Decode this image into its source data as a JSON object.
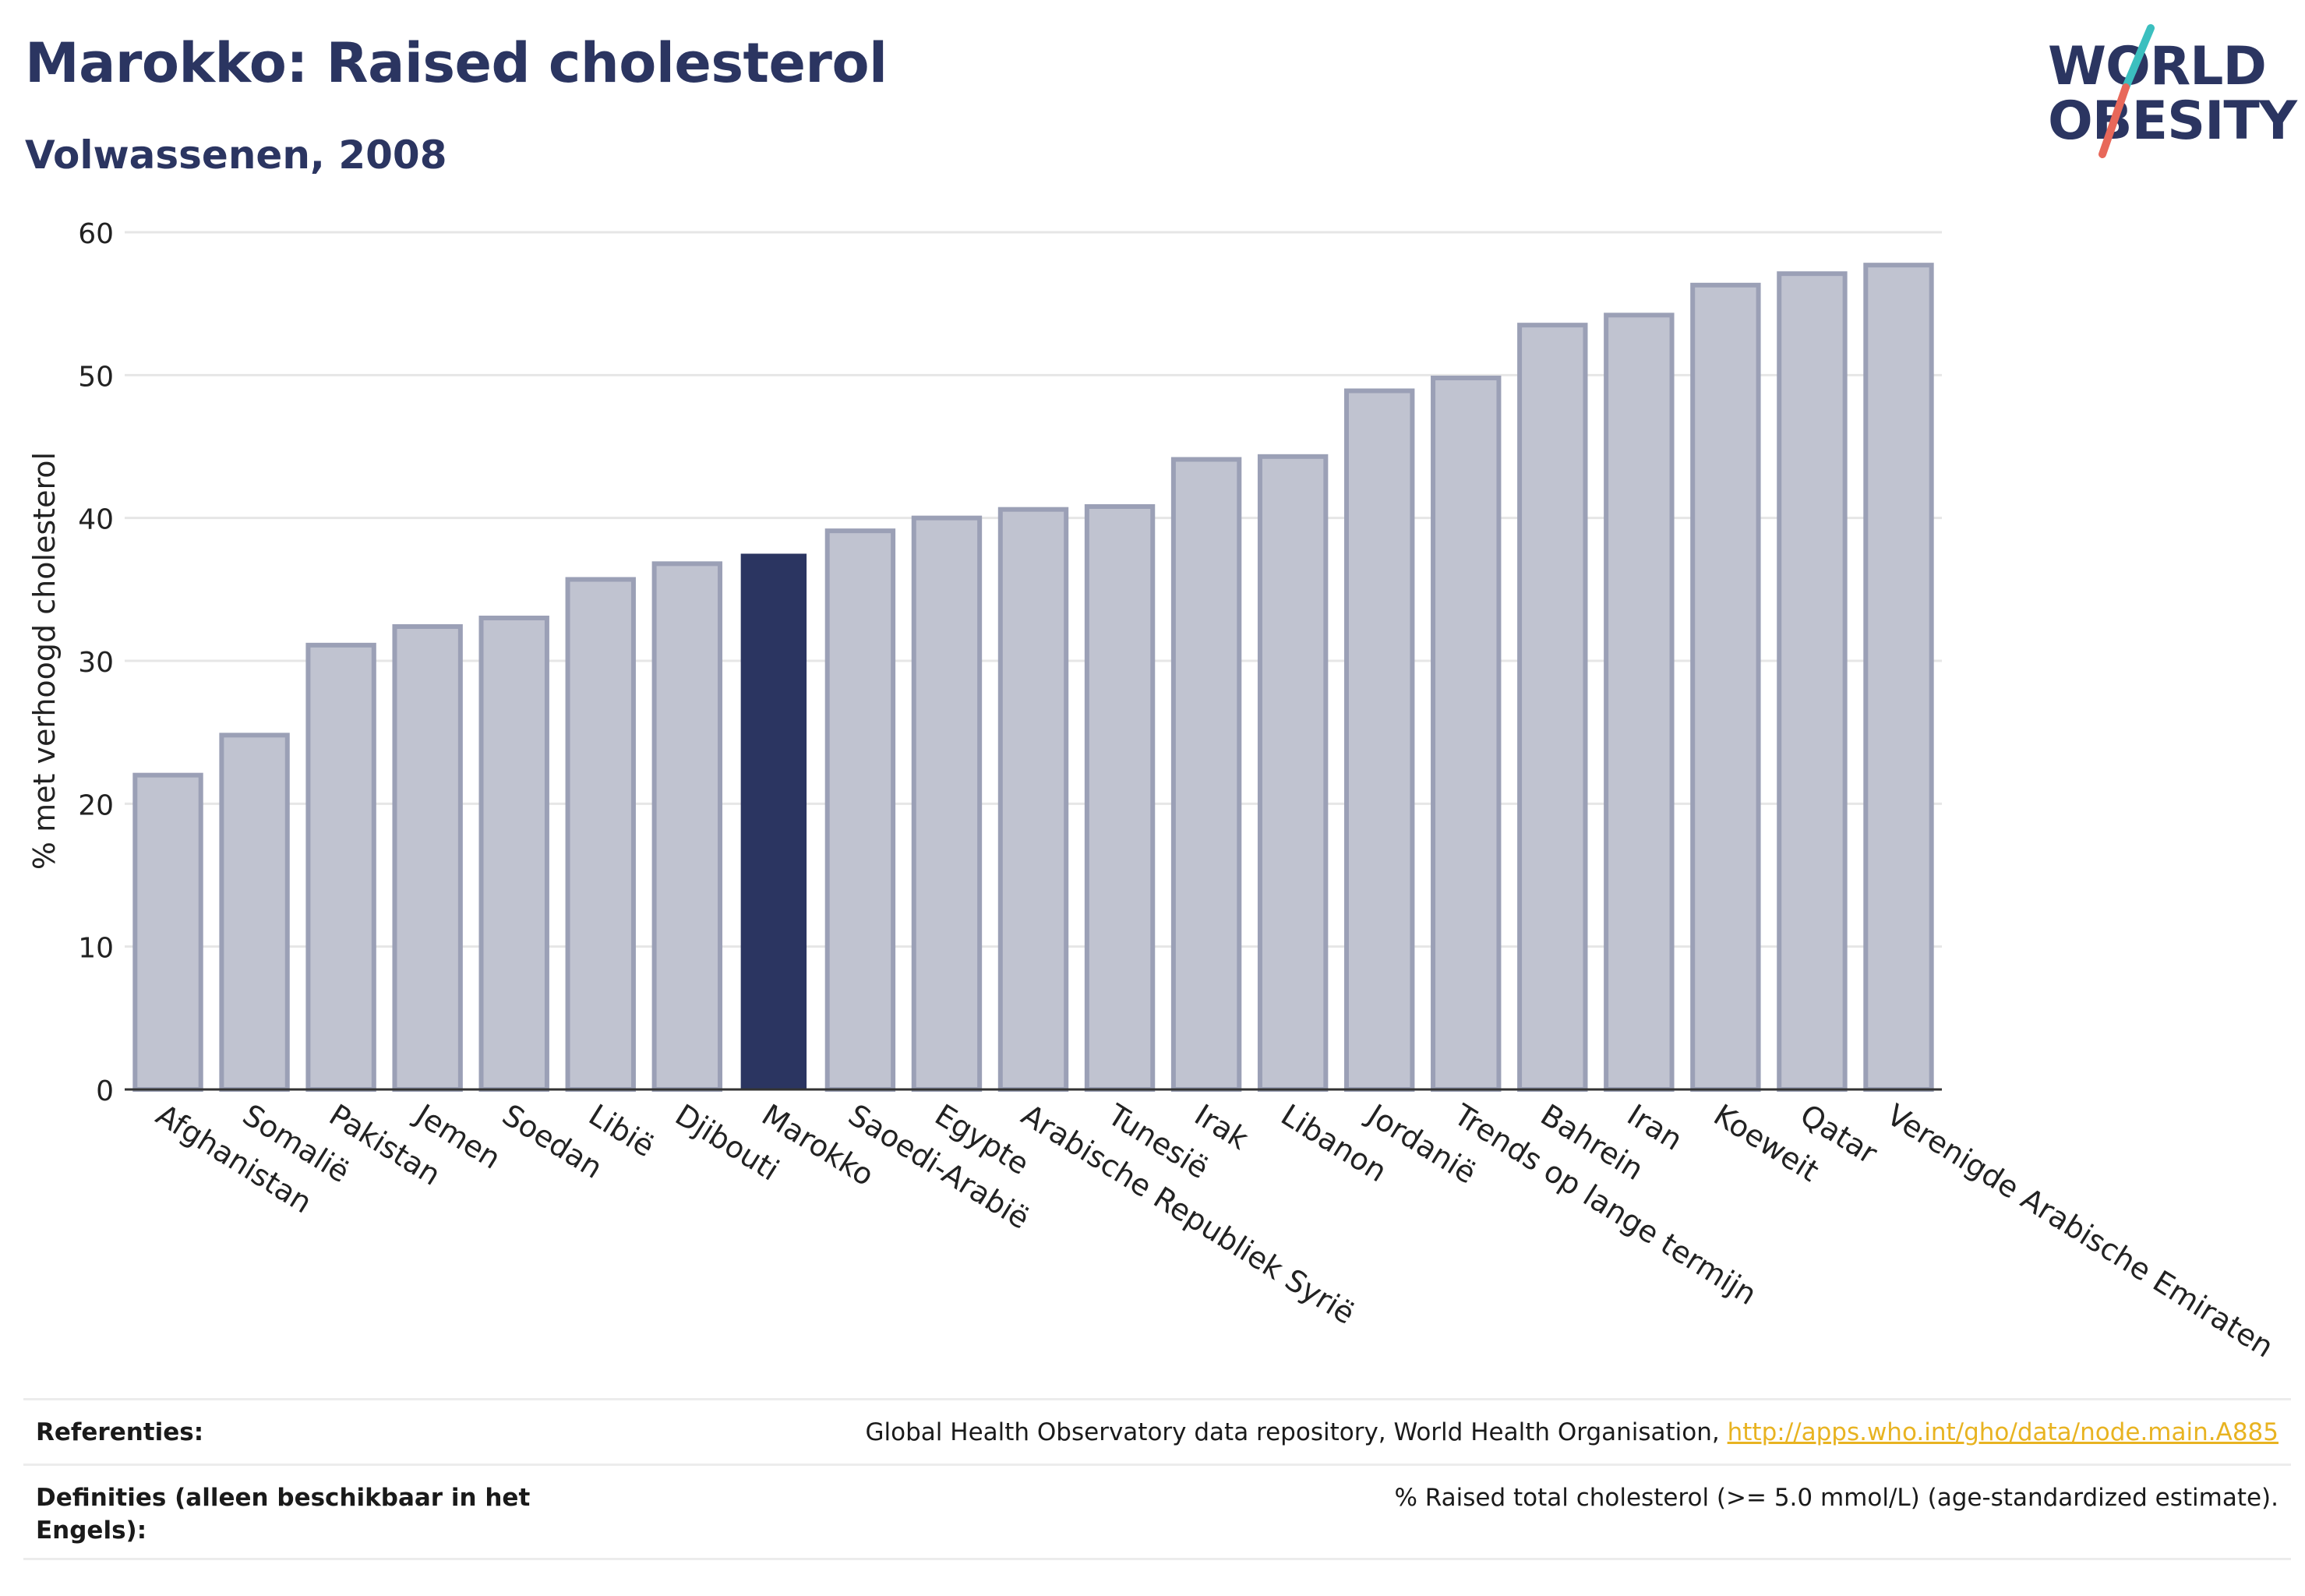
{
  "header": {
    "title": "Marokko: Raised cholesterol",
    "subtitle": "Volwassenen, 2008"
  },
  "logo": {
    "line1": "WORLD",
    "line2": "OBESITY",
    "colors": {
      "text": "#2b3561",
      "slash_top": "#3bbfbf",
      "slash_bottom": "#e8685a"
    }
  },
  "chart_data": {
    "type": "bar",
    "title": "Marokko: Raised cholesterol",
    "subtitle": "Volwassenen, 2008",
    "xlabel": "",
    "ylabel": "% met verhoogd cholesterol",
    "ylim": [
      0,
      60
    ],
    "yticks": [
      0,
      10,
      20,
      30,
      40,
      50,
      60
    ],
    "grid": true,
    "highlight": "Marokko",
    "colors": {
      "bar": "#c0c3d0",
      "bar_border": "#9ba0b6",
      "highlight": "#2b3561",
      "grid": "#e6e6e6",
      "axis": "#333333"
    },
    "categories": [
      "Afghanistan",
      "Somalië",
      "Pakistan",
      "Jemen",
      "Soedan",
      "Libië",
      "Djibouti",
      "Marokko",
      "Saoedi-Arabië",
      "Egypte",
      "Arabische Republiek Syrië",
      "Tunesië",
      "Irak",
      "Libanon",
      "Jordanië",
      "Trends op lange termijn",
      "Bahrein",
      "Iran",
      "Koeweit",
      "Qatar",
      "Verenigde Arabische Emiraten"
    ],
    "values": [
      22.0,
      24.8,
      31.1,
      32.4,
      33.0,
      35.7,
      36.8,
      37.5,
      39.1,
      40.0,
      40.6,
      40.8,
      44.1,
      44.3,
      48.9,
      49.8,
      53.5,
      54.2,
      56.3,
      57.1,
      57.7
    ]
  },
  "footer": {
    "references_label": "Referenties:",
    "references_text": "Global Health Observatory data repository, World Health Organisation, ",
    "references_link": "http://apps.who.int/gho/data/node.main.A885",
    "definitions_label": "Definities (alleen beschikbaar in het Engels):",
    "definitions_text": "% Raised total cholesterol (>= 5.0 mmol/L) (age-standardized estimate)."
  }
}
